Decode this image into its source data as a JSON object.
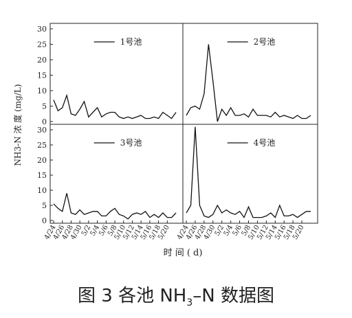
{
  "caption": {
    "prefix": "图 3 各池 NH",
    "sub": "3",
    "suffix": "–N 数据图"
  },
  "chart_data": [
    {
      "type": "line",
      "series": [
        {
          "name": "1号池",
          "values": [
            7,
            3.5,
            4.5,
            8.5,
            2.5,
            2,
            4,
            6.5,
            1.5,
            3,
            4.5,
            1.5,
            2.5,
            3,
            3,
            1.5,
            1,
            1.5,
            1,
            1.5,
            2,
            1,
            1,
            1.5,
            1,
            3,
            2,
            1,
            3
          ]
        }
      ],
      "ylim": [
        0,
        30
      ],
      "grid": false,
      "legend": "top-right"
    },
    {
      "type": "line",
      "series": [
        {
          "name": "2号池",
          "values": [
            2,
            4.5,
            5,
            4,
            9,
            25,
            13,
            0,
            4,
            2,
            4.5,
            2,
            2,
            2.5,
            1.5,
            4,
            2,
            2,
            2,
            1.5,
            3,
            1.5,
            2,
            1.5,
            1,
            2,
            1,
            1,
            2
          ]
        }
      ],
      "ylim": [
        0,
        30
      ],
      "grid": false,
      "legend": "top-right"
    },
    {
      "type": "line",
      "series": [
        {
          "name": "3号池",
          "values": [
            5.5,
            4,
            3,
            9,
            2.5,
            2,
            3.5,
            2,
            2.5,
            3,
            3,
            1.5,
            1.5,
            3,
            4,
            2,
            1.5,
            0.5,
            2,
            2.5,
            2,
            3,
            1,
            2,
            1,
            2.5,
            1,
            1,
            2.5
          ]
        }
      ],
      "ylim": [
        0,
        30
      ],
      "grid": false,
      "legend": "top-right"
    },
    {
      "type": "line",
      "series": [
        {
          "name": "4号池",
          "values": [
            2.5,
            5,
            31,
            5,
            1.5,
            1,
            2,
            5,
            2.5,
            3.5,
            2.5,
            2,
            3,
            1,
            4.5,
            1,
            1,
            1,
            1.5,
            2.5,
            1,
            5,
            1.5,
            1.5,
            2,
            1,
            2,
            3,
            3
          ]
        }
      ],
      "ylim": [
        0,
        30
      ],
      "grid": false,
      "legend": "top-right"
    }
  ],
  "axes": {
    "ylabel": "NH3-N 浓 度 (mg/L)",
    "xlabel": "时 间 ( d)",
    "yticks": [
      "0",
      "5",
      "10",
      "15",
      "20",
      "25",
      "30"
    ],
    "xticks": [
      "4/24",
      "4/26",
      "4/28",
      "4/30",
      "5/2",
      "5/4",
      "5/6",
      "5/8",
      "5/10",
      "5/12",
      "5/14",
      "5/16",
      "5/18",
      "5/20"
    ]
  }
}
